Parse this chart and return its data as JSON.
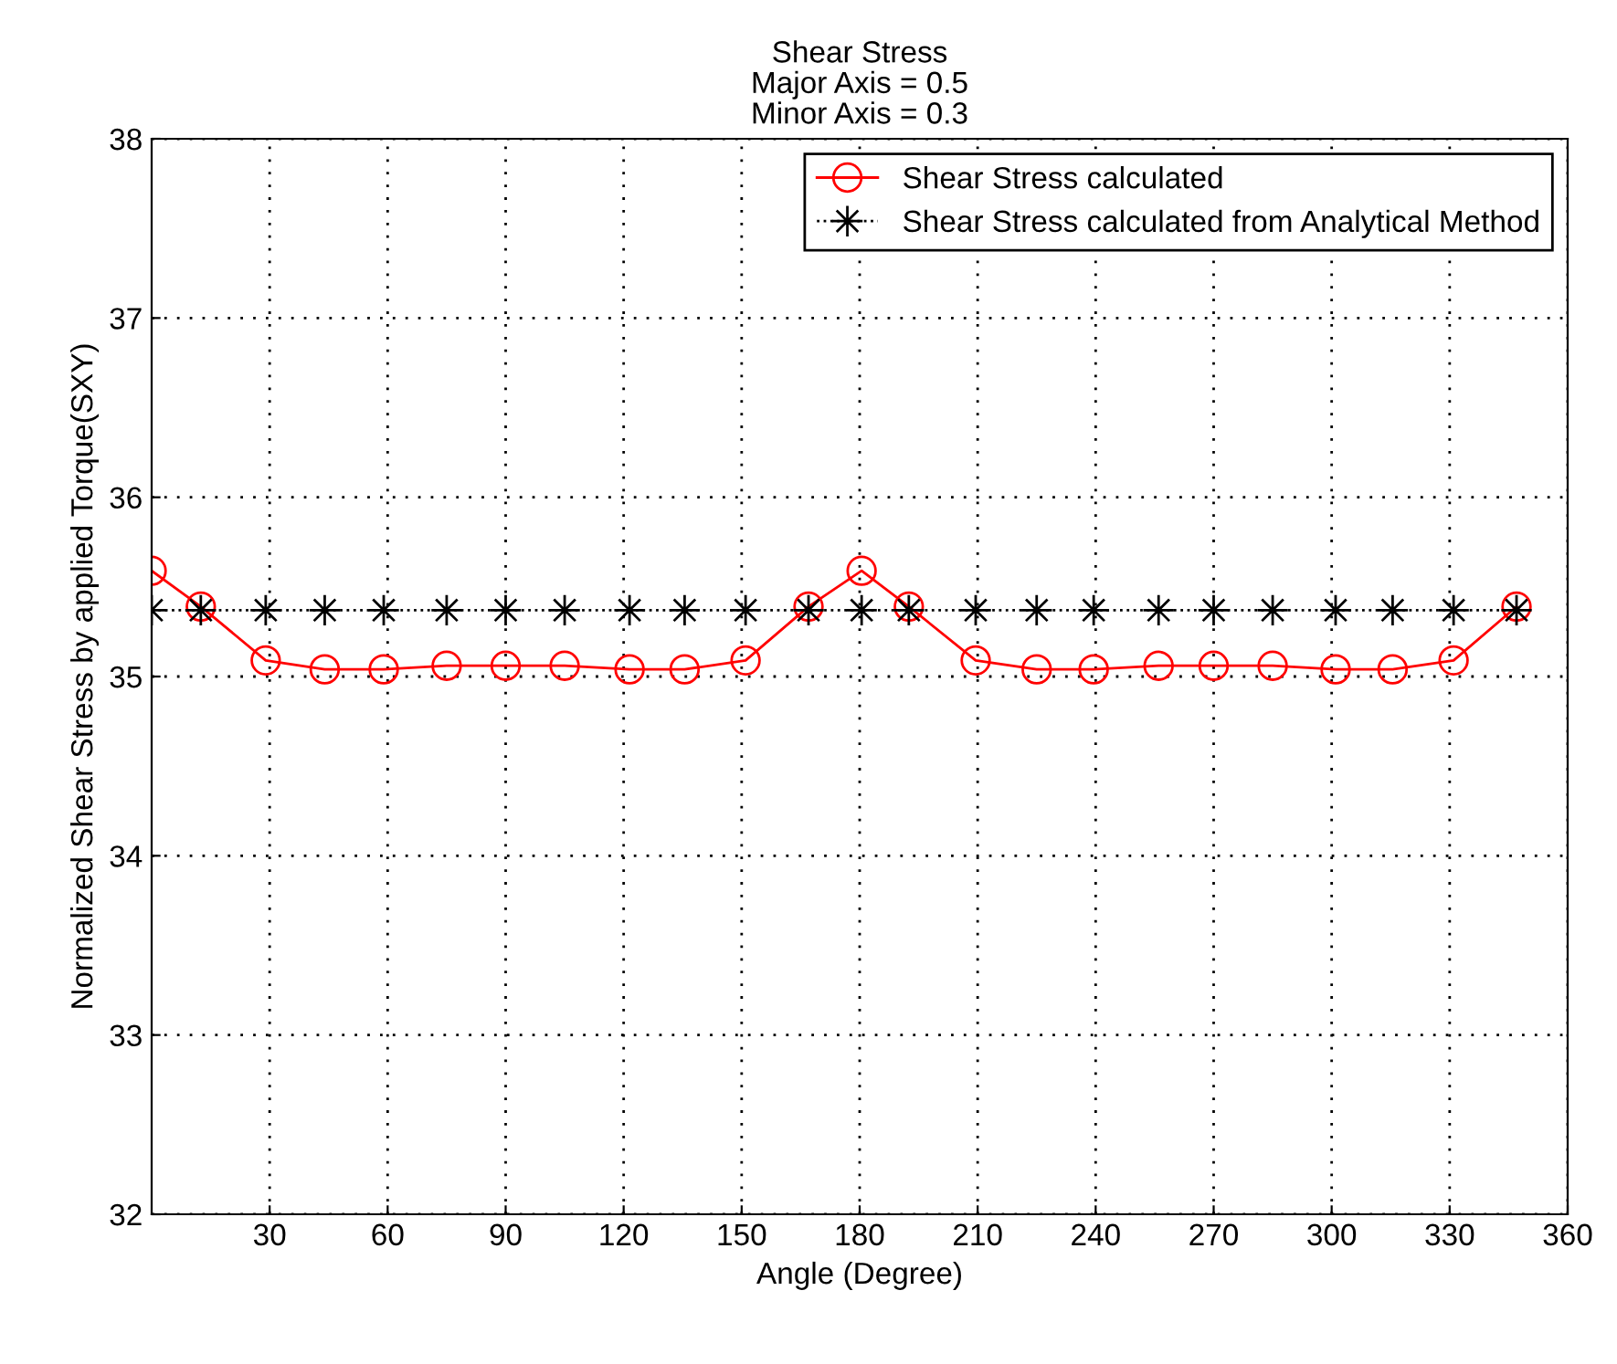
{
  "chart_data": {
    "type": "line",
    "title": "Shear Stress\nMajor Axis = 0.5\nMinor Axis = 0.3",
    "xlabel": "Angle (Degree)",
    "ylabel": "Normalized Shear Stress by applied Torque(SXY)",
    "x": [
      0,
      12.5,
      29,
      44,
      59,
      75,
      90,
      105,
      121.5,
      135.5,
      151,
      167,
      180.5,
      192.5,
      209.5,
      225,
      239.5,
      256,
      270,
      285,
      301,
      315.5,
      331,
      347
    ],
    "series": [
      {
        "name": "Shear Stress calculated",
        "color": "#ff0000",
        "marker": "circle",
        "line_style": "solid",
        "values": [
          35.59,
          35.39,
          35.09,
          35.04,
          35.04,
          35.06,
          35.06,
          35.06,
          35.04,
          35.04,
          35.09,
          35.39,
          35.59,
          35.39,
          35.09,
          35.04,
          35.04,
          35.06,
          35.06,
          35.06,
          35.04,
          35.04,
          35.09,
          35.39
        ]
      },
      {
        "name": "Shear Stress calculated from Analytical Method",
        "color": "#000000",
        "marker": "cross",
        "line_style": "dotted",
        "values": [
          35.37,
          35.37,
          35.37,
          35.37,
          35.37,
          35.37,
          35.37,
          35.37,
          35.37,
          35.37,
          35.37,
          35.37,
          35.37,
          35.37,
          35.37,
          35.37,
          35.37,
          35.37,
          35.37,
          35.37,
          35.37,
          35.37,
          35.37,
          35.37
        ]
      }
    ],
    "xlim": [
      0,
      360
    ],
    "xticks": [
      30,
      60,
      90,
      120,
      150,
      180,
      210,
      240,
      270,
      300,
      330,
      360
    ],
    "ylim": [
      32,
      38
    ],
    "yticks": [
      32,
      33,
      34,
      35,
      36,
      37,
      38
    ],
    "grid": true,
    "legend": "top right"
  }
}
